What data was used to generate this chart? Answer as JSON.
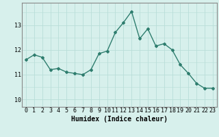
{
  "x": [
    0,
    1,
    2,
    3,
    4,
    5,
    6,
    7,
    8,
    9,
    10,
    11,
    12,
    13,
    14,
    15,
    16,
    17,
    18,
    19,
    20,
    21,
    22,
    23
  ],
  "y": [
    11.6,
    11.8,
    11.7,
    11.2,
    11.25,
    11.1,
    11.05,
    11.0,
    11.2,
    11.85,
    11.95,
    12.7,
    13.1,
    13.55,
    12.45,
    12.85,
    12.15,
    12.25,
    12.0,
    11.4,
    11.05,
    10.65,
    10.45,
    10.45
  ],
  "line_color": "#2e7d6e",
  "marker": "D",
  "marker_size": 2,
  "bg_color": "#d7f0ec",
  "grid_color": "#b8ddd8",
  "axis_color": "#888888",
  "xlabel": "Humidex (Indice chaleur)",
  "xlabel_fontsize": 7,
  "tick_fontsize": 6,
  "yticks": [
    10,
    11,
    12,
    13
  ],
  "ylim": [
    9.7,
    13.9
  ],
  "xlim": [
    -0.5,
    23.5
  ],
  "linewidth": 1.0
}
